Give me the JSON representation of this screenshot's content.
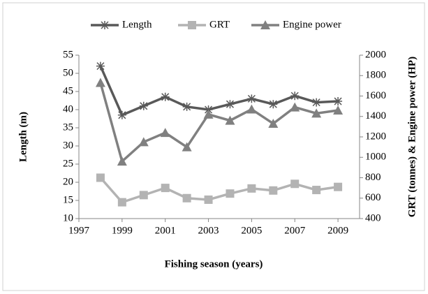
{
  "chart_data": {
    "type": "line",
    "x": [
      1998,
      1999,
      2000,
      2001,
      2002,
      2003,
      2004,
      2005,
      2006,
      2007,
      2008,
      2009
    ],
    "xlabel": "Fishing season (years)",
    "ylabel": "Length (m)",
    "y2label": "GRT (tonnes) & Engine power (HP)",
    "xlim": [
      1997,
      2010
    ],
    "xticks": [
      1997,
      1999,
      2001,
      2003,
      2005,
      2007,
      2009
    ],
    "ylim": [
      10,
      55
    ],
    "yticks": [
      10,
      15,
      20,
      25,
      30,
      35,
      40,
      45,
      50,
      55
    ],
    "y2lim": [
      400,
      2000
    ],
    "y2ticks": [
      400,
      600,
      800,
      1000,
      1200,
      1400,
      1600,
      1800,
      2000
    ],
    "legend": "top",
    "series": [
      {
        "name": "Length",
        "color": "#595959",
        "marker": "star",
        "values": [
          52,
          38.5,
          41,
          43.5,
          40.8,
          40,
          41.5,
          43,
          41.5,
          43.8,
          42,
          42.3
        ]
      },
      {
        "name": "GRT",
        "color": "#b3b3b3",
        "marker": "square",
        "axis": "y2",
        "values": [
          800,
          560,
          630,
          700,
          600,
          585,
          645,
          695,
          675,
          740,
          680,
          710
        ]
      },
      {
        "name": "Engine power",
        "color": "#808080",
        "marker": "triangle",
        "axis": "y2",
        "values": [
          1730,
          960,
          1150,
          1240,
          1100,
          1420,
          1360,
          1470,
          1330,
          1490,
          1430,
          1460
        ]
      }
    ]
  }
}
